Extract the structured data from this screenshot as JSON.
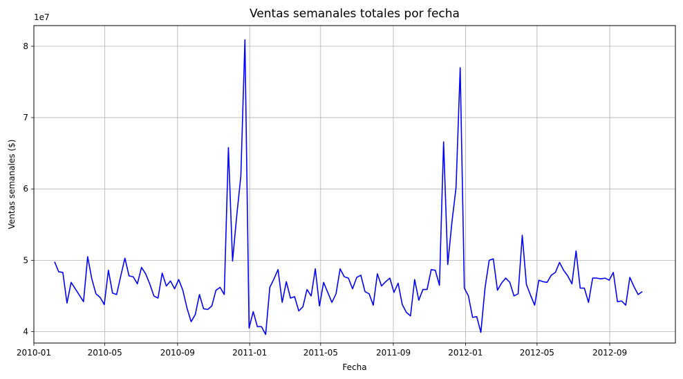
{
  "chart_data": {
    "type": "line",
    "title": "Ventas semanales totales por fecha",
    "xlabel": "Fecha",
    "ylabel": "Ventas semanales ($)",
    "offset_text": "1e7",
    "grid": true,
    "xlim": [
      "2010-01-01",
      "2012-12-21"
    ],
    "ylim": [
      3.84,
      8.29
    ],
    "x_ticks": [
      "2010-01",
      "2010-05",
      "2010-09",
      "2011-01",
      "2011-05",
      "2011-09",
      "2012-01",
      "2012-05",
      "2012-09"
    ],
    "y_ticks": [
      4,
      5,
      6,
      7,
      8
    ],
    "y_unit_scale": 10000000,
    "series": [
      {
        "color": "#0000ff",
        "x": [
          "2010-02-05",
          "2010-02-12",
          "2010-02-19",
          "2010-02-26",
          "2010-03-05",
          "2010-03-12",
          "2010-03-19",
          "2010-03-26",
          "2010-04-02",
          "2010-04-09",
          "2010-04-16",
          "2010-04-23",
          "2010-04-30",
          "2010-05-07",
          "2010-05-14",
          "2010-05-21",
          "2010-05-28",
          "2010-06-04",
          "2010-06-11",
          "2010-06-18",
          "2010-06-25",
          "2010-07-02",
          "2010-07-09",
          "2010-07-16",
          "2010-07-23",
          "2010-07-30",
          "2010-08-06",
          "2010-08-13",
          "2010-08-20",
          "2010-08-27",
          "2010-09-03",
          "2010-09-10",
          "2010-09-17",
          "2010-09-24",
          "2010-10-01",
          "2010-10-08",
          "2010-10-15",
          "2010-10-22",
          "2010-10-29",
          "2010-11-05",
          "2010-11-12",
          "2010-11-19",
          "2010-11-26",
          "2010-12-03",
          "2010-12-10",
          "2010-12-17",
          "2010-12-24",
          "2010-12-31",
          "2011-01-07",
          "2011-01-14",
          "2011-01-21",
          "2011-01-28",
          "2011-02-04",
          "2011-02-11",
          "2011-02-18",
          "2011-02-25",
          "2011-03-04",
          "2011-03-11",
          "2011-03-18",
          "2011-03-25",
          "2011-04-01",
          "2011-04-08",
          "2011-04-15",
          "2011-04-22",
          "2011-04-29",
          "2011-05-06",
          "2011-05-13",
          "2011-05-20",
          "2011-05-27",
          "2011-06-03",
          "2011-06-10",
          "2011-06-17",
          "2011-06-24",
          "2011-07-01",
          "2011-07-08",
          "2011-07-15",
          "2011-07-22",
          "2011-07-29",
          "2011-08-05",
          "2011-08-12",
          "2011-08-19",
          "2011-08-26",
          "2011-09-02",
          "2011-09-09",
          "2011-09-16",
          "2011-09-23",
          "2011-09-30",
          "2011-10-07",
          "2011-10-14",
          "2011-10-21",
          "2011-10-28",
          "2011-11-04",
          "2011-11-11",
          "2011-11-18",
          "2011-11-25",
          "2011-12-02",
          "2011-12-09",
          "2011-12-16",
          "2011-12-23",
          "2011-12-30",
          "2012-01-06",
          "2012-01-13",
          "2012-01-20",
          "2012-01-27",
          "2012-02-03",
          "2012-02-10",
          "2012-02-17",
          "2012-02-24",
          "2012-03-02",
          "2012-03-09",
          "2012-03-16",
          "2012-03-23",
          "2012-03-30",
          "2012-04-06",
          "2012-04-13",
          "2012-04-20",
          "2012-04-27",
          "2012-05-04",
          "2012-05-11",
          "2012-05-18",
          "2012-05-25",
          "2012-06-01",
          "2012-06-08",
          "2012-06-15",
          "2012-06-22",
          "2012-06-29",
          "2012-07-06",
          "2012-07-13",
          "2012-07-20",
          "2012-07-27",
          "2012-08-03",
          "2012-08-10",
          "2012-08-17",
          "2012-08-24",
          "2012-08-31",
          "2012-09-07",
          "2012-09-14",
          "2012-09-21",
          "2012-09-28",
          "2012-10-05",
          "2012-10-12",
          "2012-10-19",
          "2012-10-26"
        ],
        "y": [
          4.98,
          4.84,
          4.83,
          4.4,
          4.69,
          4.6,
          4.51,
          4.42,
          5.05,
          4.74,
          4.53,
          4.48,
          4.38,
          4.86,
          4.54,
          4.52,
          4.78,
          5.03,
          4.78,
          4.77,
          4.67,
          4.9,
          4.81,
          4.67,
          4.5,
          4.47,
          4.82,
          4.64,
          4.71,
          4.6,
          4.73,
          4.58,
          4.33,
          4.14,
          4.24,
          4.52,
          4.32,
          4.31,
          4.36,
          4.58,
          4.62,
          4.52,
          6.58,
          4.99,
          5.62,
          6.18,
          8.09,
          4.05,
          4.28,
          4.07,
          4.07,
          3.96,
          4.62,
          4.74,
          4.87,
          4.41,
          4.7,
          4.47,
          4.49,
          4.29,
          4.35,
          4.59,
          4.5,
          4.88,
          4.36,
          4.69,
          4.55,
          4.41,
          4.53,
          4.88,
          4.77,
          4.75,
          4.6,
          4.76,
          4.79,
          4.56,
          4.53,
          4.37,
          4.81,
          4.64,
          4.7,
          4.75,
          4.55,
          4.68,
          4.38,
          4.27,
          4.22,
          4.73,
          4.44,
          4.59,
          4.59,
          4.87,
          4.86,
          4.65,
          6.66,
          4.94,
          5.53,
          6.02,
          7.7,
          4.61,
          4.5,
          4.2,
          4.21,
          3.99,
          4.61,
          5.0,
          5.02,
          4.58,
          4.68,
          4.75,
          4.69,
          4.5,
          4.53,
          5.35,
          4.66,
          4.51,
          4.37,
          4.72,
          4.7,
          4.69,
          4.79,
          4.83,
          4.97,
          4.86,
          4.78,
          4.67,
          5.13,
          4.61,
          4.61,
          4.41,
          4.75,
          4.75,
          4.74,
          4.75,
          4.72,
          4.83,
          4.42,
          4.43,
          4.37,
          4.76,
          4.63,
          4.52,
          4.56
        ]
      }
    ]
  }
}
